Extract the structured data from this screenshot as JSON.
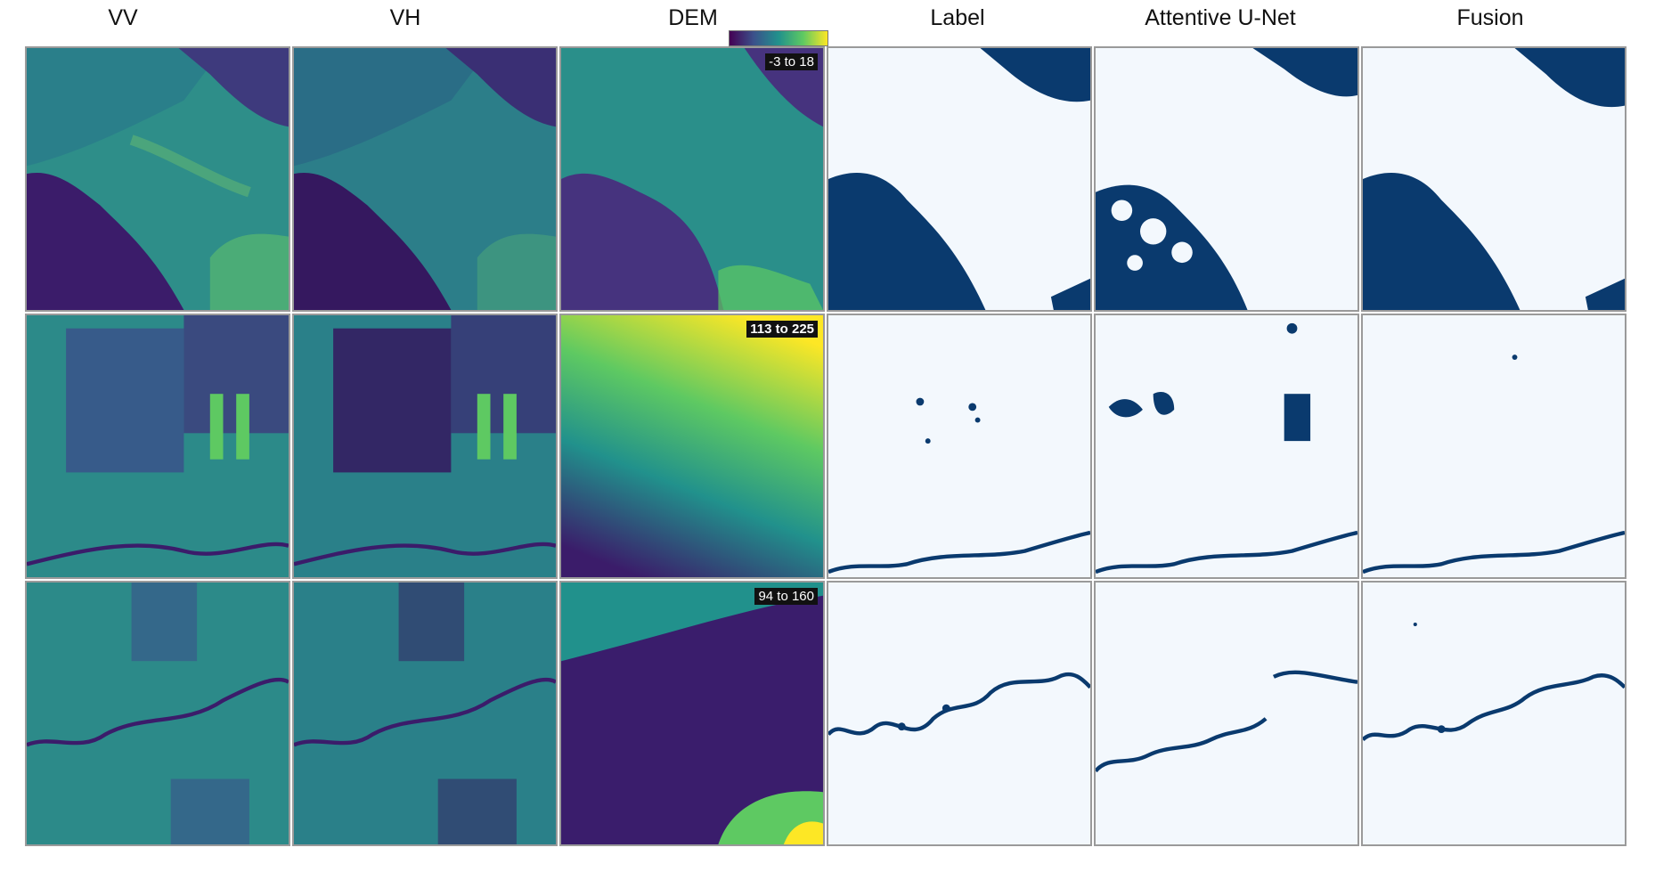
{
  "columns": [
    "VV",
    "VH",
    "DEM",
    "Label",
    "Attentive U-Net",
    "Fusion"
  ],
  "dem_colorbar": {
    "colormap": "viridis",
    "colors": [
      "#440154",
      "#3b528b",
      "#21918c",
      "#5ec962",
      "#fde725"
    ]
  },
  "rows": [
    {
      "dem_range": "-3 to 18"
    },
    {
      "dem_range": "113 to 225"
    },
    {
      "dem_range": "94 to 160"
    }
  ],
  "colors": {
    "water": "#0a3a6e",
    "land": "#f3f8fd",
    "sar_dark": "#3b1c6a",
    "sar_mid": "#2c8c8a",
    "sar_bright": "#5ec962"
  }
}
